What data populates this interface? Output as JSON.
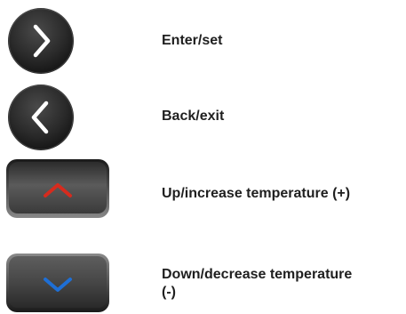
{
  "legend": {
    "items": [
      {
        "icon": "chevron-right-circle-icon",
        "label": "Enter/set"
      },
      {
        "icon": "chevron-left-circle-icon",
        "label": "Back/exit"
      },
      {
        "icon": "up-arrow-key-icon",
        "label": "Up/increase temperature (+)"
      },
      {
        "icon": "down-arrow-key-icon",
        "label": "Down/decrease temperature\n(-)"
      }
    ]
  },
  "colors": {
    "button_dark": "#2a2a2a",
    "button_mid": "#4a4a4a",
    "up_arrow": "#d62b1e",
    "down_arrow": "#1e6fd6",
    "label_text": "#1f1f1f"
  }
}
